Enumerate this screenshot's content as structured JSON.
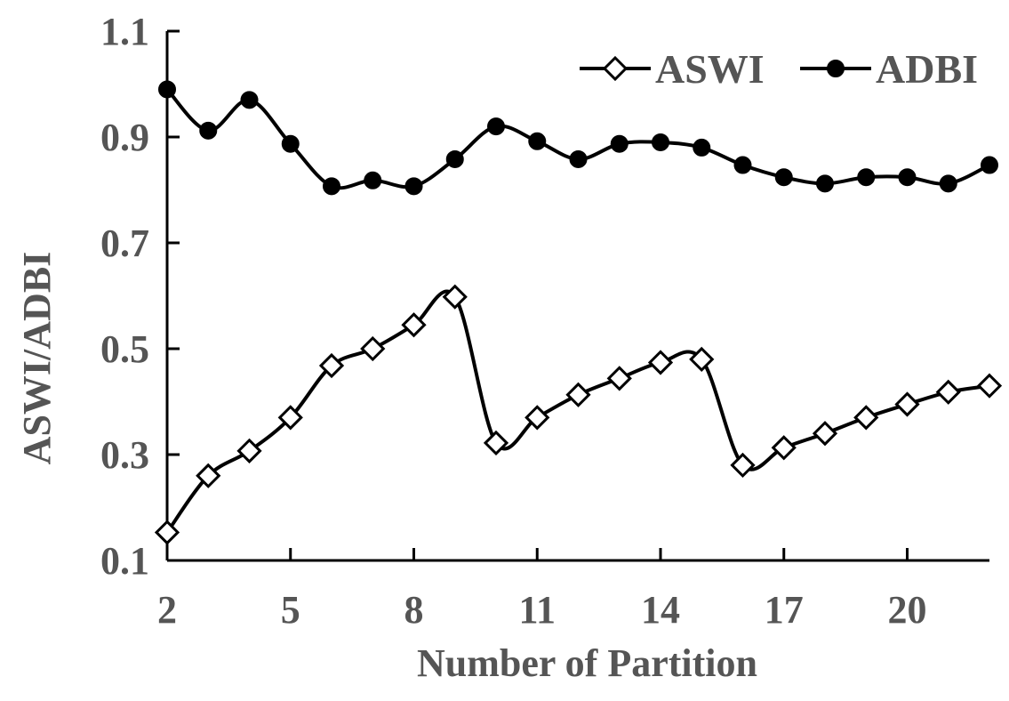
{
  "chart_data": {
    "type": "line",
    "xlabel": "Number of Partition",
    "ylabel": "ASWI/ADBI",
    "xlim": [
      2,
      22
    ],
    "ylim": [
      0.1,
      1.1
    ],
    "x_ticks": [
      2,
      5,
      8,
      11,
      14,
      17,
      20
    ],
    "y_ticks": [
      0.1,
      0.3,
      0.5,
      0.7,
      0.9,
      1.1
    ],
    "y_tick_labels": [
      "0.1",
      "0.3",
      "0.5",
      "0.7",
      "0.9",
      "1.1"
    ],
    "grid": false,
    "smooth": true,
    "legend_position": "top-right",
    "x": [
      2,
      3,
      4,
      5,
      6,
      7,
      8,
      9,
      10,
      11,
      12,
      13,
      14,
      15,
      16,
      17,
      18,
      19,
      20,
      21,
      22
    ],
    "series": [
      {
        "name": "ASWI",
        "marker": "diamond-open",
        "color": "#000000",
        "values": [
          0.153,
          0.26,
          0.307,
          0.37,
          0.468,
          0.5,
          0.545,
          0.598,
          0.322,
          0.37,
          0.413,
          0.444,
          0.474,
          0.48,
          0.28,
          0.313,
          0.34,
          0.37,
          0.395,
          0.418,
          0.43
        ]
      },
      {
        "name": "ADBI",
        "marker": "circle-filled",
        "color": "#000000",
        "values": [
          0.99,
          0.912,
          0.97,
          0.887,
          0.807,
          0.818,
          0.807,
          0.858,
          0.92,
          0.892,
          0.858,
          0.887,
          0.89,
          0.88,
          0.847,
          0.824,
          0.812,
          0.824,
          0.824,
          0.812,
          0.847
        ]
      }
    ]
  }
}
